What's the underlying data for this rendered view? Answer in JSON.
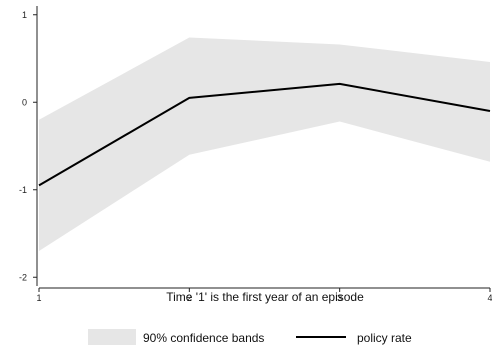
{
  "chart_data": {
    "type": "line",
    "title": "",
    "xlabel": "Time '1' is the first year of an episode",
    "ylabel": "",
    "x": [
      1,
      2,
      3,
      4
    ],
    "x_tick_labels": [
      "1",
      "2",
      "3",
      "4"
    ],
    "xlim": [
      1,
      4
    ],
    "y_ticks": [
      1,
      0,
      -1,
      -2
    ],
    "y_tick_labels": [
      "1",
      "0",
      "-1",
      "-2"
    ],
    "ylim": [
      -2.1,
      1.1
    ],
    "series": [
      {
        "name": "policy rate",
        "values": [
          -0.95,
          0.05,
          0.21,
          -0.1
        ],
        "color": "#000000"
      }
    ],
    "band": {
      "name": "90% confidence bands",
      "lower": [
        -1.7,
        -0.6,
        -0.22,
        -0.68
      ],
      "upper": [
        -0.2,
        0.74,
        0.66,
        0.46
      ],
      "color": "#e6e6e6"
    },
    "grid": false,
    "legend_position": "bottom"
  }
}
